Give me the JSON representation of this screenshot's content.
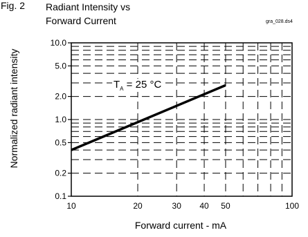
{
  "figure": {
    "number": "Fig. 2",
    "title_line1": "Radiant Intensity vs",
    "title_line2": "Forward Current",
    "file_id": "gra_028.ds4"
  },
  "chart_data": {
    "type": "line",
    "xlabel": "Forward current - mA",
    "ylabel": "Normalized radiant intensity",
    "xscale": "log",
    "yscale": "log",
    "xlim": [
      10,
      100
    ],
    "ylim": [
      0.1,
      10.0
    ],
    "x_tick_labels": [
      {
        "value": 10,
        "label": "10"
      },
      {
        "value": 20,
        "label": "20"
      },
      {
        "value": 30,
        "label": "30"
      },
      {
        "value": 40,
        "label": "40"
      },
      {
        "value": 50,
        "label": "50"
      },
      {
        "value": 100,
        "label": "100"
      }
    ],
    "y_tick_labels": [
      {
        "value": 10.0,
        "label": "10.0"
      },
      {
        "value": 5.0,
        "label": "5.0"
      },
      {
        "value": 2.0,
        "label": "2.0"
      },
      {
        "value": 1.0,
        "label": "1.0"
      },
      {
        "value": 0.5,
        "label": "0.5"
      },
      {
        "value": 0.2,
        "label": "0.2"
      },
      {
        "value": 0.1,
        "label": "0.1"
      }
    ],
    "grid": true,
    "grid_style": "dashed",
    "series": [
      {
        "x": [
          10,
          50
        ],
        "y": [
          0.4,
          2.8
        ]
      }
    ],
    "annotation": {
      "text_main": "T",
      "text_sub": "A",
      "text_rest": " = 25 °C"
    }
  }
}
